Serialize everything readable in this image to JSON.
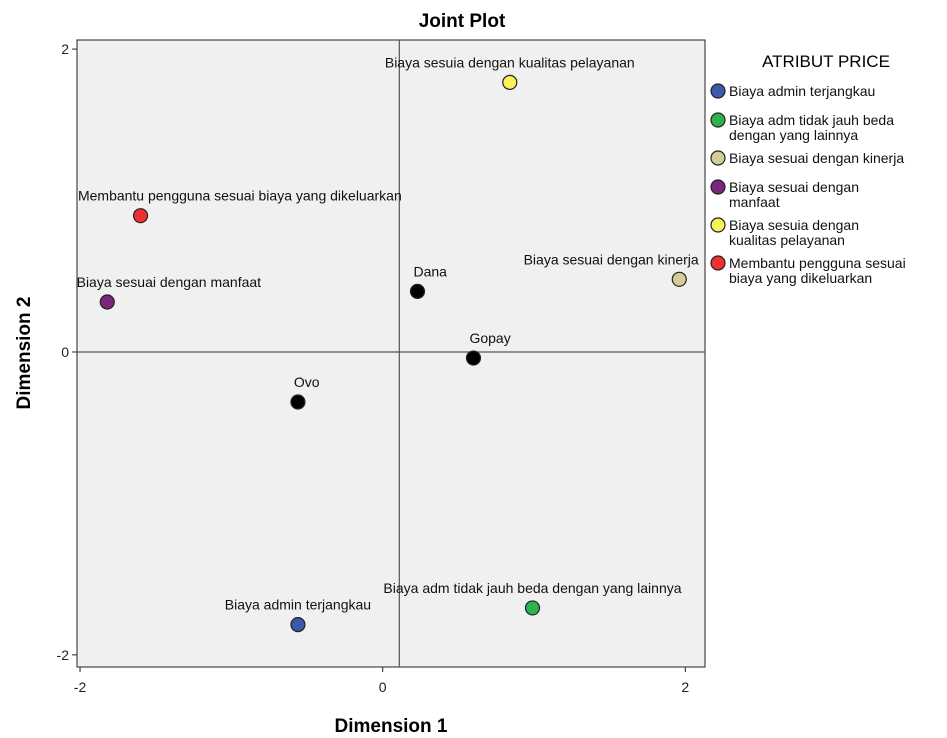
{
  "chart_data": {
    "type": "scatter",
    "title": "Joint Plot",
    "xlabel": "Dimension 1",
    "ylabel": "Dimension 2",
    "xlim": [
      -2.02,
      2.13
    ],
    "ylim": [
      -2.08,
      2.06
    ],
    "xticks": [
      -2,
      0,
      2
    ],
    "yticks": [
      -2,
      0,
      2
    ],
    "xtick_labels": [
      "-2",
      "0",
      "2"
    ],
    "ytick_labels": [
      "-2",
      "0",
      "2"
    ],
    "reference_lines": {
      "x": 0.11,
      "y": 0.0
    },
    "legend": {
      "title": "ATRIBUT PRICE",
      "placement": "right",
      "entries": [
        {
          "lines": [
            "Biaya admin terjangkau"
          ],
          "color": "#3E58A8"
        },
        {
          "lines": [
            "Biaya adm tidak jauh beda",
            "dengan yang lainnya"
          ],
          "color": "#2DB34A"
        },
        {
          "lines": [
            "Biaya sesuai dengan kinerja"
          ],
          "color": "#D4CD98"
        },
        {
          "lines": [
            "Biaya sesuai dengan",
            "manfaat"
          ],
          "color": "#7A267E"
        },
        {
          "lines": [
            "Biaya sesuia dengan",
            "kualitas pelayanan"
          ],
          "color": "#F8F25A"
        },
        {
          "lines": [
            "Membantu pengguna sesuai",
            "biaya yang dikeluarkan"
          ],
          "color": "#EE3030"
        }
      ]
    },
    "series": [
      {
        "name": "",
        "color": "#000000",
        "points": [
          {
            "label": "Dana",
            "x": 0.23,
            "y": 0.4
          },
          {
            "label": "Gopay",
            "x": 0.6,
            "y": -0.04
          },
          {
            "label": "Ovo",
            "x": -0.56,
            "y": -0.33
          }
        ]
      },
      {
        "name": "ATRIBUT PRICE",
        "points": [
          {
            "label": "Biaya admin terjangkau",
            "x": -0.56,
            "y": -1.8,
            "color": "#3E58A8"
          },
          {
            "label": "Biaya adm tidak jauh beda dengan yang lainnya",
            "x": 0.99,
            "y": -1.69,
            "color": "#2DB34A"
          },
          {
            "label": "Biaya sesuai dengan kinerja",
            "x": 1.96,
            "y": 0.48,
            "color": "#D4CD98"
          },
          {
            "label": "Biaya sesuai dengan manfaat",
            "x": -1.82,
            "y": 0.33,
            "color": "#7A267E"
          },
          {
            "label": "Biaya sesuia dengan kualitas pelayanan",
            "x": 0.84,
            "y": 1.78,
            "color": "#F8F25A"
          },
          {
            "label": "Membantu pengguna sesuai biaya yang dikeluarkan",
            "x": -1.6,
            "y": 0.9,
            "color": "#EE3030"
          }
        ]
      }
    ]
  }
}
